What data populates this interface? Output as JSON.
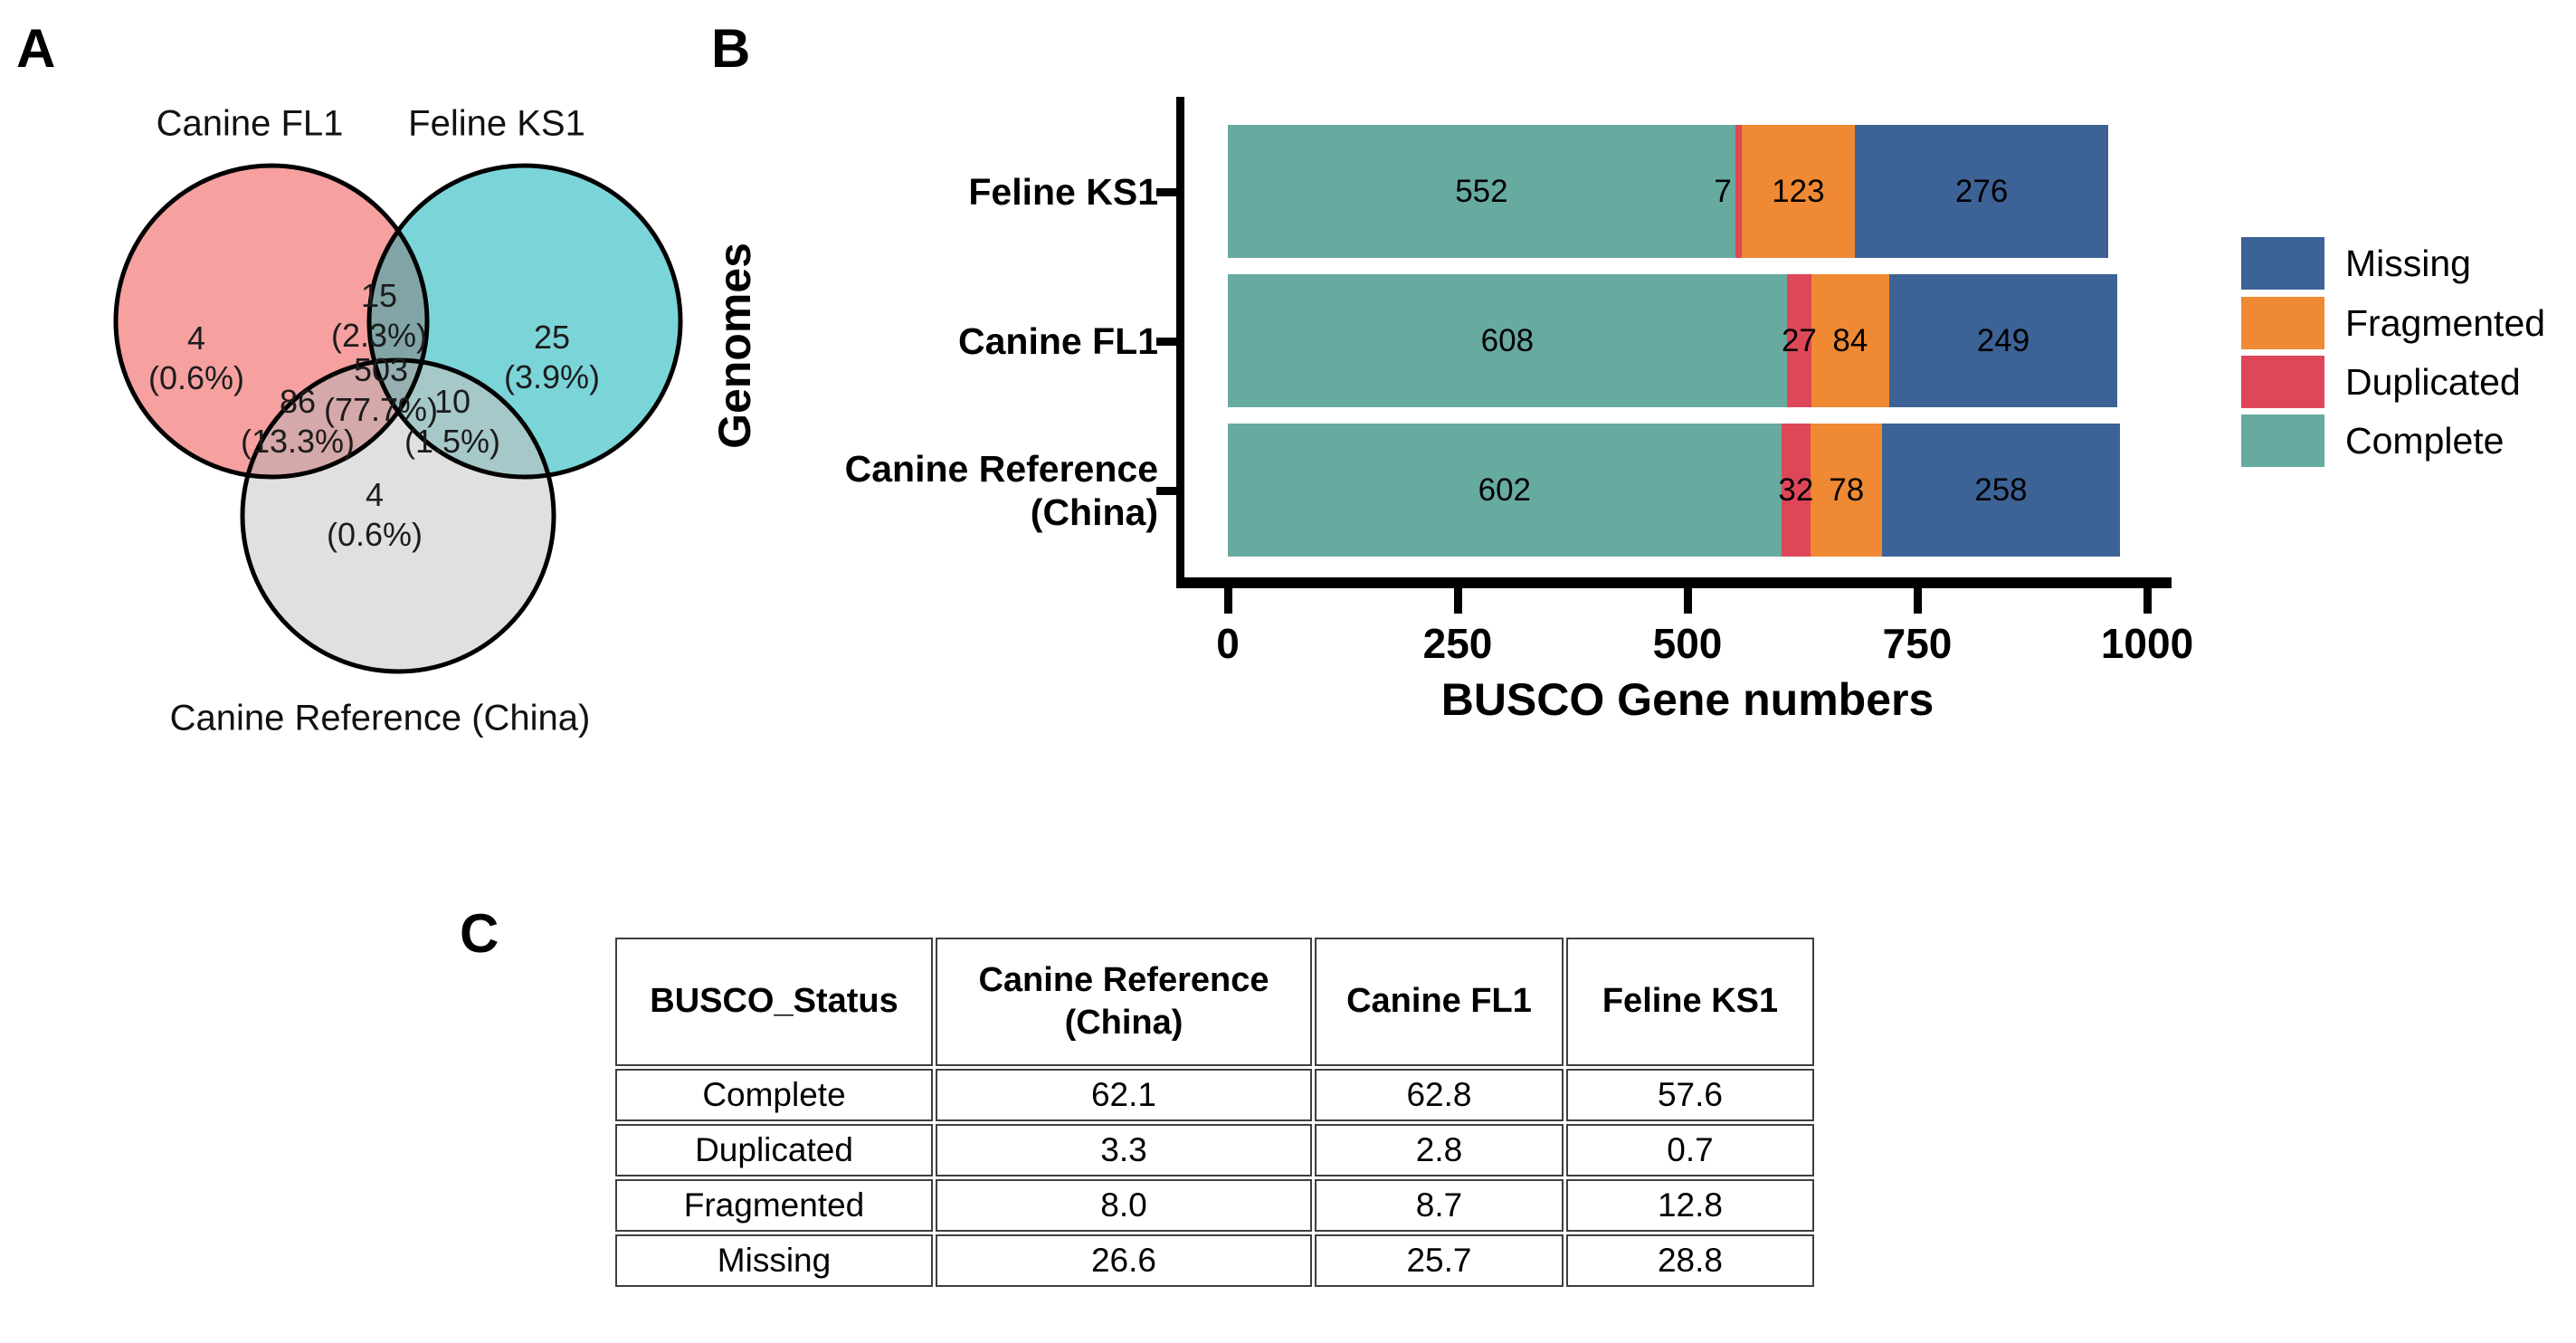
{
  "panels": {
    "a_label": "A",
    "b_label": "B",
    "c_label": "C"
  },
  "chart_data": [
    {
      "type": "venn",
      "title": "",
      "stroke_color": "#000000",
      "sets": [
        {
          "id": "canine_fl1",
          "label": "Canine FL1",
          "color": "#F6A0A0"
        },
        {
          "id": "feline_ks1",
          "label": "Feline KS1",
          "color": "#7BD5D8"
        },
        {
          "id": "canine_ref",
          "label": "Canine Reference (China)",
          "color": "#E0E0E0"
        }
      ],
      "overlap_colors": {
        "fl1_ks1": "#82A4A6",
        "fl1_ref": "#D5A8A9",
        "ks1_ref": "#A6C8C9",
        "center": "#96AFB1"
      },
      "regions": [
        {
          "id": "fl1_only",
          "count": "4",
          "pct": "(0.6%)"
        },
        {
          "id": "fl1_ks1",
          "count": "15",
          "pct": "(2.3%)"
        },
        {
          "id": "ks1_only",
          "count": "25",
          "pct": "(3.9%)"
        },
        {
          "id": "center",
          "count": "503",
          "pct": "(77.7%)"
        },
        {
          "id": "fl1_ref",
          "count": "86",
          "pct": "(13.3%)"
        },
        {
          "id": "ks1_ref",
          "count": "10",
          "pct": "(1.5%)"
        },
        {
          "id": "ref_only",
          "count": "4",
          "pct": "(0.6%)"
        }
      ]
    },
    {
      "type": "bar",
      "orientation": "horizontal",
      "stacked": true,
      "title": "",
      "xlabel": "BUSCO Gene numbers",
      "ylabel": "Genomes",
      "xlim": [
        0,
        1000
      ],
      "x_ticks": [
        0,
        250,
        500,
        750,
        1000
      ],
      "grid": false,
      "legend_position": "right",
      "categories": [
        "Feline KS1",
        "Canine FL1",
        "Canine Reference\n(China)"
      ],
      "series": [
        {
          "name": "Complete",
          "color": "#67AAA0",
          "values": [
            552,
            608,
            602
          ]
        },
        {
          "name": "Duplicated",
          "color": "#DE4758",
          "values": [
            7,
            27,
            32
          ]
        },
        {
          "name": "Fragmented",
          "color": "#EF8933",
          "values": [
            123,
            84,
            78
          ]
        },
        {
          "name": "Missing",
          "color": "#3C6296",
          "values": [
            276,
            249,
            258
          ]
        }
      ],
      "legend_order": [
        "Missing",
        "Fragmented",
        "Duplicated",
        "Complete"
      ]
    },
    {
      "type": "table",
      "headers": [
        "BUSCO_Status",
        "Canine Reference (China)",
        "Canine FL1",
        "Feline KS1"
      ],
      "rows": [
        {
          "label": "Complete",
          "values": [
            "62.1",
            "62.8",
            "57.6"
          ]
        },
        {
          "label": "Duplicated",
          "values": [
            "3.3",
            "2.8",
            "0.7"
          ]
        },
        {
          "label": "Fragmented",
          "values": [
            "8.0",
            "8.7",
            "12.8"
          ]
        },
        {
          "label": "Missing",
          "values": [
            "26.6",
            "25.7",
            "28.8"
          ]
        }
      ]
    }
  ]
}
